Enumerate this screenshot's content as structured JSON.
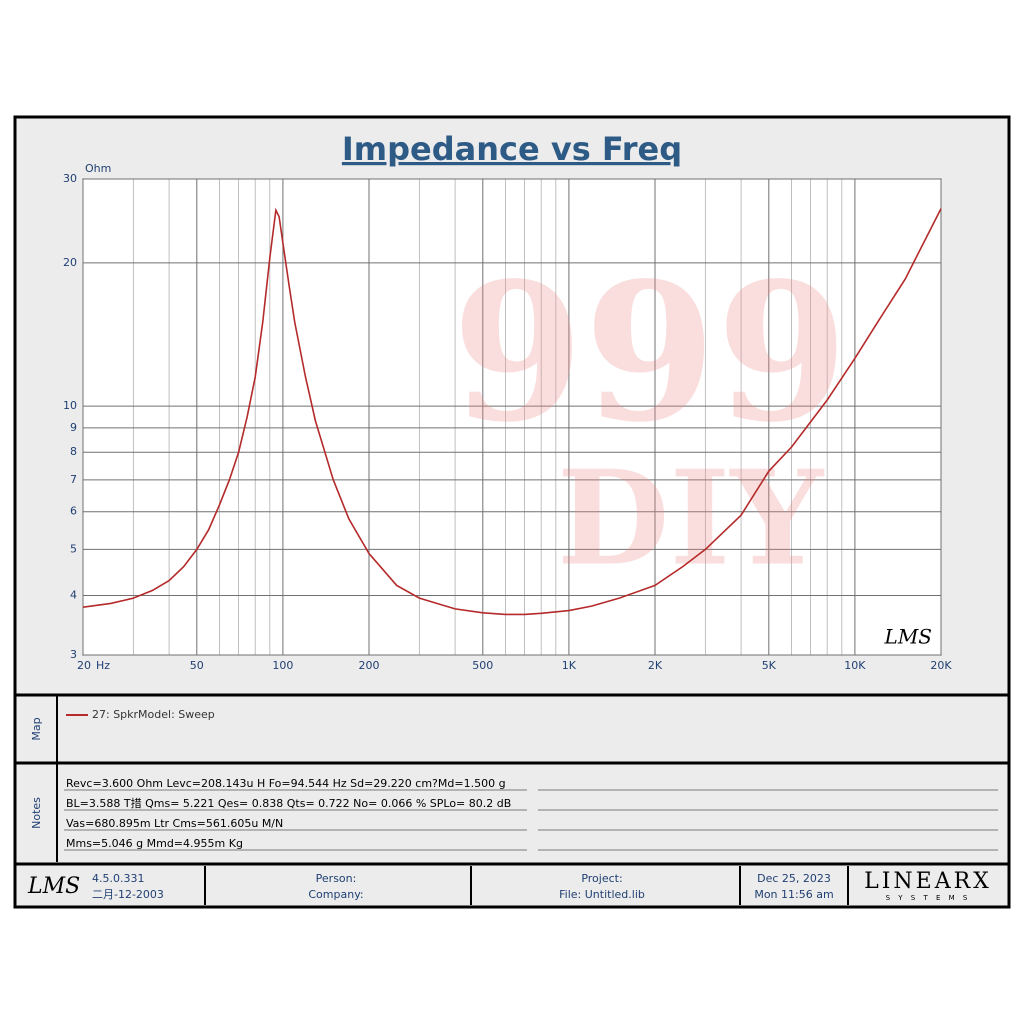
{
  "chart_data": {
    "type": "line",
    "title": "Impedance vs Freq",
    "y_label": "Ohm",
    "x_label": "Hz",
    "x": [
      20,
      25,
      30,
      35,
      40,
      45,
      50,
      55,
      60,
      65,
      70,
      75,
      80,
      85,
      90,
      94.5,
      97,
      100,
      105,
      110,
      120,
      130,
      150,
      170,
      200,
      250,
      300,
      400,
      500,
      600,
      700,
      800,
      1000,
      1200,
      1500,
      2000,
      2500,
      3000,
      4000,
      5000,
      6000,
      8000,
      10000,
      12000,
      15000,
      20000
    ],
    "series": [
      {
        "name": "27: SpkrModel: Sweep",
        "color": "#b52a2a",
        "values": [
          3.78,
          3.85,
          3.95,
          4.1,
          4.3,
          4.6,
          5.0,
          5.5,
          6.2,
          7.0,
          8.0,
          9.5,
          11.5,
          15,
          20.5,
          25.8,
          25,
          22,
          18,
          15,
          11.5,
          9.3,
          7.0,
          5.8,
          4.9,
          4.2,
          3.95,
          3.75,
          3.68,
          3.65,
          3.65,
          3.67,
          3.72,
          3.8,
          3.95,
          4.2,
          4.6,
          5.0,
          5.9,
          7.3,
          8.2,
          10.3,
          12.6,
          15,
          18.5,
          26
        ]
      }
    ],
    "xlim": [
      20,
      20000
    ],
    "ylim": [
      3,
      30
    ],
    "xscale": "log",
    "yscale": "log",
    "grid": true,
    "xticks": [
      20,
      50,
      100,
      200,
      500,
      {
        "value": 1000,
        "label": "1K"
      },
      {
        "value": 2000,
        "label": "2K"
      },
      {
        "value": 5000,
        "label": "5K"
      },
      {
        "value": 10000,
        "label": "10K"
      },
      {
        "value": 20000,
        "label": "20K"
      }
    ],
    "yticks": [
      3,
      4,
      5,
      6,
      7,
      8,
      9,
      10,
      20,
      30
    ]
  },
  "watermark": {
    "line1": "999",
    "line2": "DIY"
  },
  "plot_logo": "LMS",
  "map": {
    "label": "Map"
  },
  "notes": {
    "label": "Notes",
    "lines": [
      "Revc=3.600 Ohm  Levc=208.143u H  Fo=94.544 Hz  Sd=29.220 cm?Md=1.500 g",
      "BL=3.588 T措  Qms= 5.221  Qes= 0.838  Qts= 0.722  No= 0.066 %  SPLo= 80.2 dB",
      "Vas=680.895m Ltr  Cms=561.605u M/N",
      "Mms=5.046 g  Mmd=4.955m Kg"
    ]
  },
  "footer": {
    "logo": "LMS",
    "version": "4.5.0.331",
    "build_date": "二月-12-2003",
    "person": "Person:",
    "company": "Company:",
    "project": "Project:",
    "file": "File: Untitled.lib",
    "date": "Dec 25, 2023",
    "time": "Mon 11:56 am",
    "brand": "LINEARX",
    "brand_sub": "S Y S T E M S"
  }
}
